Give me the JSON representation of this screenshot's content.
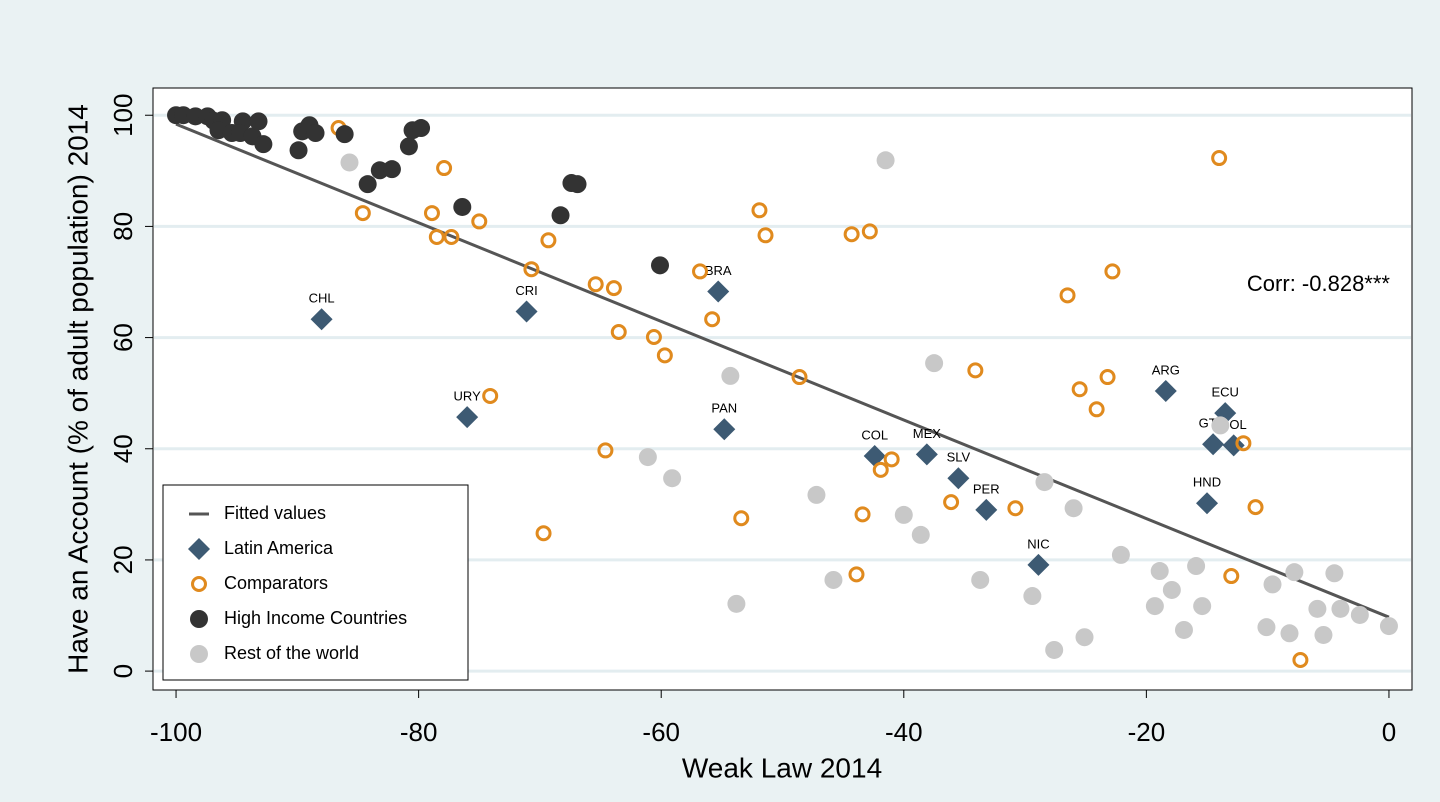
{
  "chart_data": {
    "type": "scatter",
    "x_label": "Weak Law 2014",
    "y_label": "Have an Account (% of adult population) 2014",
    "annotation": "Corr: -0.828***",
    "xlim": [
      -101.9,
      1.9
    ],
    "ylim": [
      -3.4,
      104.9
    ],
    "xticks": [
      -100,
      -80,
      -60,
      -40,
      -20,
      0
    ],
    "yticks": [
      0,
      20,
      40,
      60,
      80,
      100
    ],
    "grid": true,
    "legend": "lower left",
    "series": [
      {
        "name": "Fitted values",
        "color": "#555555",
        "marker": "line",
        "x": [
          -100,
          0
        ],
        "values": [
          98.4,
          9.7
        ]
      },
      {
        "name": "Latin America",
        "color": "#3d5a73",
        "marker": "diamond",
        "labels": [
          "CHL",
          "CRI",
          "BRA",
          "URY",
          "PAN",
          "COL",
          "MEX",
          "SLV",
          "PER",
          "NIC",
          "ARG",
          "ECU",
          "GTM",
          "BOL",
          "HND"
        ],
        "x": [
          -88,
          -71.1,
          -55.3,
          -76,
          -54.8,
          -42.4,
          -38.1,
          -35.5,
          -33.2,
          -28.9,
          -18.4,
          -13.5,
          -14.5,
          -12.8,
          -15
        ],
        "values": [
          63.3,
          64.7,
          68.3,
          45.7,
          43.5,
          38.7,
          39,
          34.7,
          29,
          19.1,
          50.4,
          46.4,
          40.8,
          40.6,
          30.2
        ]
      },
      {
        "name": "Comparators",
        "color": "#e08a1e",
        "marker": "circle-open",
        "x": [
          -86.6,
          -84.6,
          -77.9,
          -78.9,
          -78.5,
          -77.3,
          -75,
          -74.1,
          -70.7,
          -69.3,
          -69.7,
          -65.4,
          -63.9,
          -63.5,
          -64.6,
          -60.6,
          -59.7,
          -56.8,
          -55.8,
          -53.4,
          -51.9,
          -51.4,
          -48.6,
          -44.3,
          -42.8,
          -43.4,
          -43.9,
          -41.9,
          -41,
          -36.1,
          -34.1,
          -30.8,
          -26.5,
          -25.5,
          -24.1,
          -23.2,
          -22.8,
          -14,
          -13,
          -12,
          -11,
          -7.3
        ],
        "values": [
          97.7,
          82.4,
          90.5,
          82.4,
          78.1,
          78.1,
          80.9,
          49.5,
          72.3,
          77.5,
          24.8,
          69.6,
          68.9,
          61,
          39.7,
          60.1,
          56.8,
          71.9,
          63.3,
          27.5,
          82.9,
          78.4,
          52.9,
          78.6,
          79.1,
          28.2,
          17.4,
          36.2,
          38.1,
          30.4,
          54.1,
          29.3,
          67.6,
          50.7,
          47.1,
          52.9,
          71.9,
          92.3,
          17.1,
          41,
          29.5,
          2
        ]
      },
      {
        "name": "High Income Countries",
        "color": "#333333",
        "marker": "circle",
        "x": [
          -100,
          -99.4,
          -98.4,
          -97.4,
          -96.9,
          -96.2,
          -96.5,
          -95.4,
          -94.5,
          -94.7,
          -93.7,
          -93.2,
          -92.8,
          -89.9,
          -89.6,
          -89,
          -88.5,
          -86.1,
          -84.2,
          -83.2,
          -82.2,
          -80.8,
          -80.5,
          -79.8,
          -76.4,
          -68.3,
          -67.4,
          -66.9,
          -60.1
        ],
        "values": [
          100,
          100,
          99.8,
          99.8,
          99,
          99.1,
          97.3,
          96.8,
          98.9,
          96.8,
          96.2,
          98.9,
          94.8,
          93.7,
          97.1,
          98.2,
          96.8,
          96.6,
          87.6,
          90.1,
          90.3,
          94.4,
          97.3,
          97.7,
          83.5,
          82,
          87.8,
          87.6,
          73
        ]
      },
      {
        "name": "Rest of the world",
        "color": "#c8c8c8",
        "marker": "circle",
        "x": [
          -85.7,
          -41.5,
          -54.3,
          -37.5,
          -61.1,
          -59.1,
          -47.2,
          -40,
          -38.6,
          -45.8,
          -53.8,
          -33.7,
          -28.4,
          -26,
          -29.4,
          -27.6,
          -25.1,
          -22.1,
          -18.9,
          -19.3,
          -17.9,
          -15.9,
          -16.9,
          -15.4,
          -13.9,
          -9.6,
          -10.1,
          -8.2,
          -7.8,
          -5.9,
          -5.4,
          -4.5,
          -4,
          -2.4,
          0
        ],
        "values": [
          91.5,
          91.9,
          53.1,
          55.4,
          38.5,
          34.7,
          31.7,
          28.1,
          24.5,
          16.4,
          12.1,
          16.4,
          34,
          29.3,
          13.5,
          3.8,
          6.1,
          20.9,
          18,
          11.7,
          14.6,
          18.9,
          7.4,
          11.7,
          44.2,
          15.6,
          7.9,
          6.8,
          17.8,
          11.2,
          6.5,
          17.6,
          11.2,
          10.1,
          8.1
        ]
      }
    ]
  }
}
